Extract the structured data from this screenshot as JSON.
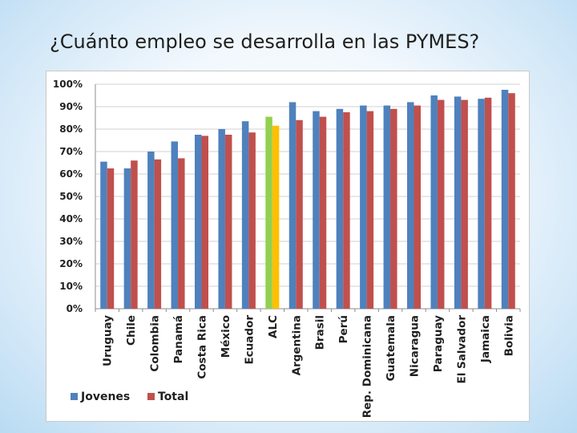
{
  "slide": {
    "title": "¿Cuánto empleo se desarrolla en las PYMES?"
  },
  "chart_data": {
    "type": "bar",
    "title": "",
    "xlabel": "",
    "ylabel": "",
    "ylim": [
      0,
      100
    ],
    "yticks": [
      "0%",
      "10%",
      "20%",
      "30%",
      "40%",
      "50%",
      "60%",
      "70%",
      "80%",
      "90%",
      "100%"
    ],
    "grid": true,
    "legend_position": "bottom-left",
    "categories": [
      "Uruguay",
      "Chile",
      "Colombia",
      "Panamá",
      "Costa Rica",
      "México",
      "Ecuador",
      "ALC",
      "Argentina",
      "Brasil",
      "Perú",
      "Rep. Dominicana",
      "Guatemala",
      "Nicaragua",
      "Paraguay",
      "El Salvador",
      "Jamaica",
      "Bolivia"
    ],
    "series": [
      {
        "name": "Jovenes",
        "color": "#4f81bd",
        "values": [
          65.5,
          62.5,
          70,
          74.5,
          77.5,
          80,
          83.5,
          85.5,
          92,
          88,
          89,
          90.5,
          90.5,
          92,
          95,
          94.5,
          93.5,
          97.5
        ]
      },
      {
        "name": "Total",
        "color": "#c0504d",
        "values": [
          62.5,
          66,
          66.5,
          67,
          77,
          77.5,
          78.5,
          81.5,
          84,
          85.5,
          87.5,
          88,
          89,
          90.5,
          93,
          93,
          94,
          96
        ]
      }
    ],
    "highlight": {
      "category": "ALC",
      "colors": [
        "#92d050",
        "#ffc000"
      ]
    }
  }
}
